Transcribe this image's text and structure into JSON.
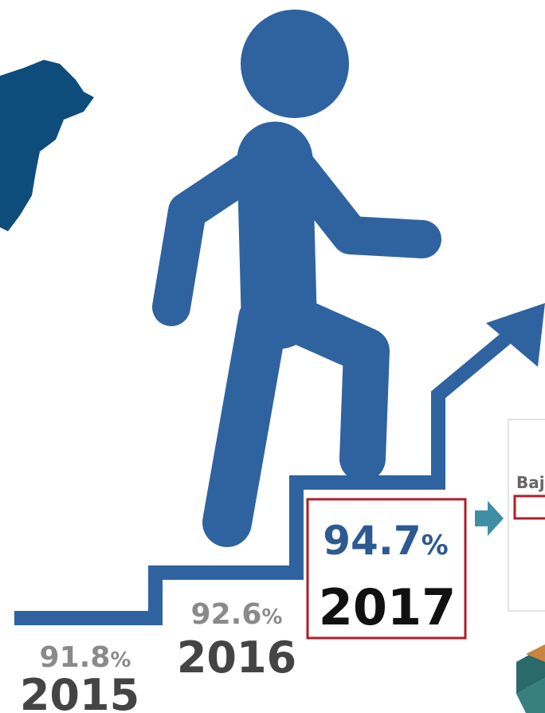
{
  "steps": [
    {
      "value": "91.8",
      "unit": "%",
      "year": "2015"
    },
    {
      "value": "92.6",
      "unit": "%",
      "year": "2016"
    },
    {
      "value": "94.7",
      "unit": "%",
      "year": "2017"
    }
  ],
  "side_panel": {
    "label": "Baj"
  }
}
